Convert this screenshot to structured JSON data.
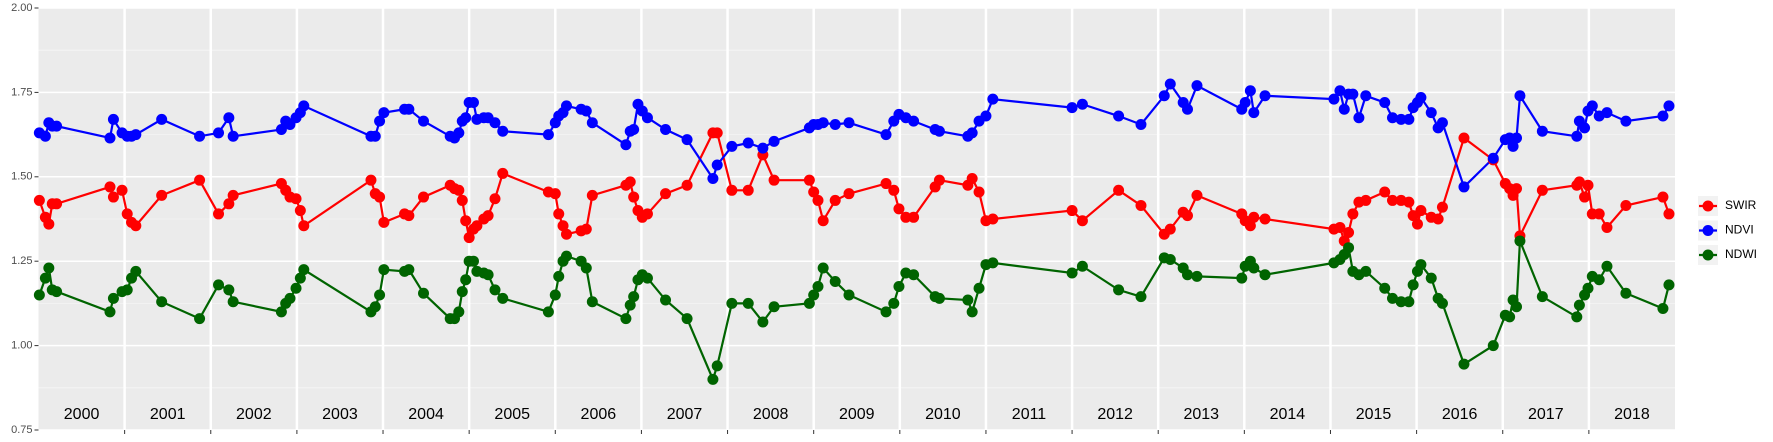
{
  "chart_data": {
    "type": "line",
    "x": [
      2000.01,
      2000.08,
      2000.12,
      2000.16,
      2000.21,
      2000.83,
      2000.87,
      2000.97,
      2001.03,
      2001.08,
      2001.13,
      2001.43,
      2001.87,
      2002.09,
      2002.21,
      2002.26,
      2002.82,
      2002.87,
      2002.92,
      2002.99,
      2003.04,
      2003.08,
      2003.86,
      2003.91,
      2003.96,
      2004.01,
      2004.25,
      2004.3,
      2004.47,
      2004.78,
      2004.83,
      2004.88,
      2004.92,
      2004.96,
      2005.0,
      2005.05,
      2005.09,
      2005.17,
      2005.22,
      2005.3,
      2005.39,
      2005.92,
      2006.0,
      2006.04,
      2006.09,
      2006.13,
      2006.3,
      2006.36,
      2006.43,
      2006.82,
      2006.87,
      2006.91,
      2006.96,
      2007.01,
      2007.07,
      2007.28,
      2007.53,
      2007.83,
      2007.88,
      2008.05,
      2008.24,
      2008.41,
      2008.54,
      2008.95,
      2009.0,
      2009.05,
      2009.11,
      2009.25,
      2009.41,
      2009.84,
      2009.93,
      2009.99,
      2010.07,
      2010.16,
      2010.41,
      2010.46,
      2010.79,
      2010.84,
      2010.92,
      2011.0,
      2011.08,
      2012.0,
      2012.12,
      2012.54,
      2012.8,
      2013.07,
      2013.14,
      2013.29,
      2013.34,
      2013.45,
      2013.97,
      2014.01,
      2014.07,
      2014.11,
      2014.24,
      2015.04,
      2015.11,
      2015.16,
      2015.21,
      2015.26,
      2015.33,
      2015.41,
      2015.63,
      2015.72,
      2015.82,
      2015.91,
      2015.96,
      2016.01,
      2016.05,
      2016.17,
      2016.25,
      2016.3,
      2016.55,
      2016.89,
      2017.03,
      2017.08,
      2017.12,
      2017.16,
      2017.2,
      2017.46,
      2017.86,
      2017.89,
      2017.95,
      2017.99,
      2018.04,
      2018.12,
      2018.21,
      2018.43,
      2018.86,
      2018.93
    ],
    "series": [
      {
        "name": "SWIR",
        "color": "#ff0000",
        "values": [
          1.43,
          1.38,
          1.36,
          1.42,
          1.42,
          1.47,
          1.44,
          1.46,
          1.39,
          1.365,
          1.355,
          1.445,
          1.49,
          1.39,
          1.42,
          1.445,
          1.48,
          1.46,
          1.44,
          1.435,
          1.4,
          1.355,
          1.49,
          1.45,
          1.44,
          1.365,
          1.39,
          1.385,
          1.44,
          1.475,
          1.465,
          1.46,
          1.43,
          1.37,
          1.32,
          1.345,
          1.355,
          1.375,
          1.385,
          1.435,
          1.51,
          1.455,
          1.45,
          1.39,
          1.355,
          1.33,
          1.34,
          1.345,
          1.445,
          1.475,
          1.485,
          1.44,
          1.4,
          1.38,
          1.39,
          1.45,
          1.475,
          1.63,
          1.63,
          1.46,
          1.46,
          1.565,
          1.49,
          1.49,
          1.455,
          1.43,
          1.37,
          1.43,
          1.45,
          1.48,
          1.46,
          1.405,
          1.38,
          1.38,
          1.47,
          1.49,
          1.475,
          1.495,
          1.455,
          1.37,
          1.375,
          1.4,
          1.37,
          1.46,
          1.415,
          1.33,
          1.345,
          1.395,
          1.385,
          1.445,
          1.39,
          1.37,
          1.355,
          1.38,
          1.375,
          1.345,
          1.35,
          1.31,
          1.335,
          1.39,
          1.425,
          1.43,
          1.455,
          1.43,
          1.43,
          1.425,
          1.385,
          1.36,
          1.4,
          1.38,
          1.375,
          1.41,
          1.615,
          1.55,
          1.48,
          1.465,
          1.445,
          1.465,
          1.325,
          1.46,
          1.475,
          1.485,
          1.44,
          1.475,
          1.39,
          1.39,
          1.35,
          1.415,
          1.44,
          1.39
        ]
      },
      {
        "name": "NDVI",
        "color": "#0000ff",
        "values": [
          1.63,
          1.62,
          1.66,
          1.65,
          1.65,
          1.615,
          1.67,
          1.63,
          1.62,
          1.62,
          1.625,
          1.67,
          1.62,
          1.63,
          1.675,
          1.62,
          1.64,
          1.665,
          1.655,
          1.675,
          1.69,
          1.71,
          1.62,
          1.62,
          1.665,
          1.69,
          1.7,
          1.7,
          1.665,
          1.62,
          1.615,
          1.63,
          1.665,
          1.675,
          1.72,
          1.72,
          1.67,
          1.675,
          1.675,
          1.66,
          1.635,
          1.625,
          1.66,
          1.68,
          1.69,
          1.71,
          1.7,
          1.695,
          1.66,
          1.595,
          1.635,
          1.64,
          1.715,
          1.695,
          1.675,
          1.64,
          1.61,
          1.495,
          1.535,
          1.59,
          1.6,
          1.585,
          1.605,
          1.645,
          1.655,
          1.655,
          1.66,
          1.655,
          1.66,
          1.625,
          1.665,
          1.685,
          1.675,
          1.665,
          1.64,
          1.635,
          1.62,
          1.63,
          1.665,
          1.68,
          1.73,
          1.705,
          1.715,
          1.68,
          1.655,
          1.74,
          1.775,
          1.72,
          1.7,
          1.77,
          1.7,
          1.72,
          1.755,
          1.69,
          1.74,
          1.73,
          1.755,
          1.7,
          1.745,
          1.745,
          1.675,
          1.74,
          1.72,
          1.675,
          1.67,
          1.67,
          1.705,
          1.72,
          1.735,
          1.69,
          1.645,
          1.66,
          1.47,
          1.555,
          1.61,
          1.615,
          1.59,
          1.615,
          1.74,
          1.635,
          1.62,
          1.665,
          1.645,
          1.695,
          1.71,
          1.68,
          1.69,
          1.665,
          1.68,
          1.71
        ]
      },
      {
        "name": "NDWI",
        "color": "#006400",
        "values": [
          1.15,
          1.2,
          1.23,
          1.165,
          1.16,
          1.1,
          1.14,
          1.16,
          1.165,
          1.2,
          1.22,
          1.13,
          1.08,
          1.18,
          1.165,
          1.13,
          1.1,
          1.125,
          1.14,
          1.17,
          1.2,
          1.225,
          1.1,
          1.115,
          1.15,
          1.225,
          1.22,
          1.225,
          1.155,
          1.08,
          1.08,
          1.1,
          1.16,
          1.195,
          1.25,
          1.25,
          1.22,
          1.215,
          1.21,
          1.165,
          1.14,
          1.1,
          1.15,
          1.205,
          1.25,
          1.265,
          1.25,
          1.23,
          1.13,
          1.08,
          1.12,
          1.145,
          1.195,
          1.21,
          1.2,
          1.135,
          1.08,
          0.9,
          0.94,
          1.125,
          1.125,
          1.07,
          1.115,
          1.125,
          1.15,
          1.175,
          1.23,
          1.19,
          1.15,
          1.1,
          1.125,
          1.175,
          1.215,
          1.21,
          1.145,
          1.14,
          1.135,
          1.1,
          1.17,
          1.24,
          1.245,
          1.215,
          1.235,
          1.165,
          1.145,
          1.26,
          1.255,
          1.23,
          1.21,
          1.205,
          1.2,
          1.235,
          1.25,
          1.23,
          1.21,
          1.245,
          1.255,
          1.27,
          1.29,
          1.22,
          1.21,
          1.22,
          1.17,
          1.14,
          1.13,
          1.13,
          1.18,
          1.22,
          1.24,
          1.2,
          1.14,
          1.125,
          0.945,
          1.0,
          1.09,
          1.085,
          1.135,
          1.115,
          1.31,
          1.145,
          1.085,
          1.12,
          1.15,
          1.17,
          1.205,
          1.195,
          1.235,
          1.155,
          1.11,
          1.18
        ]
      }
    ],
    "xlim": [
      2000,
      2019
    ],
    "xticks": [
      2001,
      2002,
      2003,
      2004,
      2005,
      2006,
      2007,
      2008,
      2009,
      2010,
      2011,
      2012,
      2013,
      2014,
      2015,
      2016,
      2017,
      2018
    ],
    "years": [
      2000,
      2001,
      2002,
      2003,
      2004,
      2005,
      2006,
      2007,
      2008,
      2009,
      2010,
      2011,
      2012,
      2013,
      2014,
      2015,
      2016,
      2017,
      2018
    ],
    "ylim": [
      0.75,
      2.0
    ],
    "yticks": [
      {
        "value": 0.75,
        "label": "0.75"
      },
      {
        "value": 1.0,
        "label": "1.00"
      },
      {
        "value": 1.25,
        "label": "1.25"
      },
      {
        "value": 1.5,
        "label": "1.50"
      },
      {
        "value": 1.75,
        "label": "1.75"
      },
      {
        "value": 2.0,
        "label": "2.00"
      }
    ],
    "grid": true,
    "legend": "right"
  }
}
